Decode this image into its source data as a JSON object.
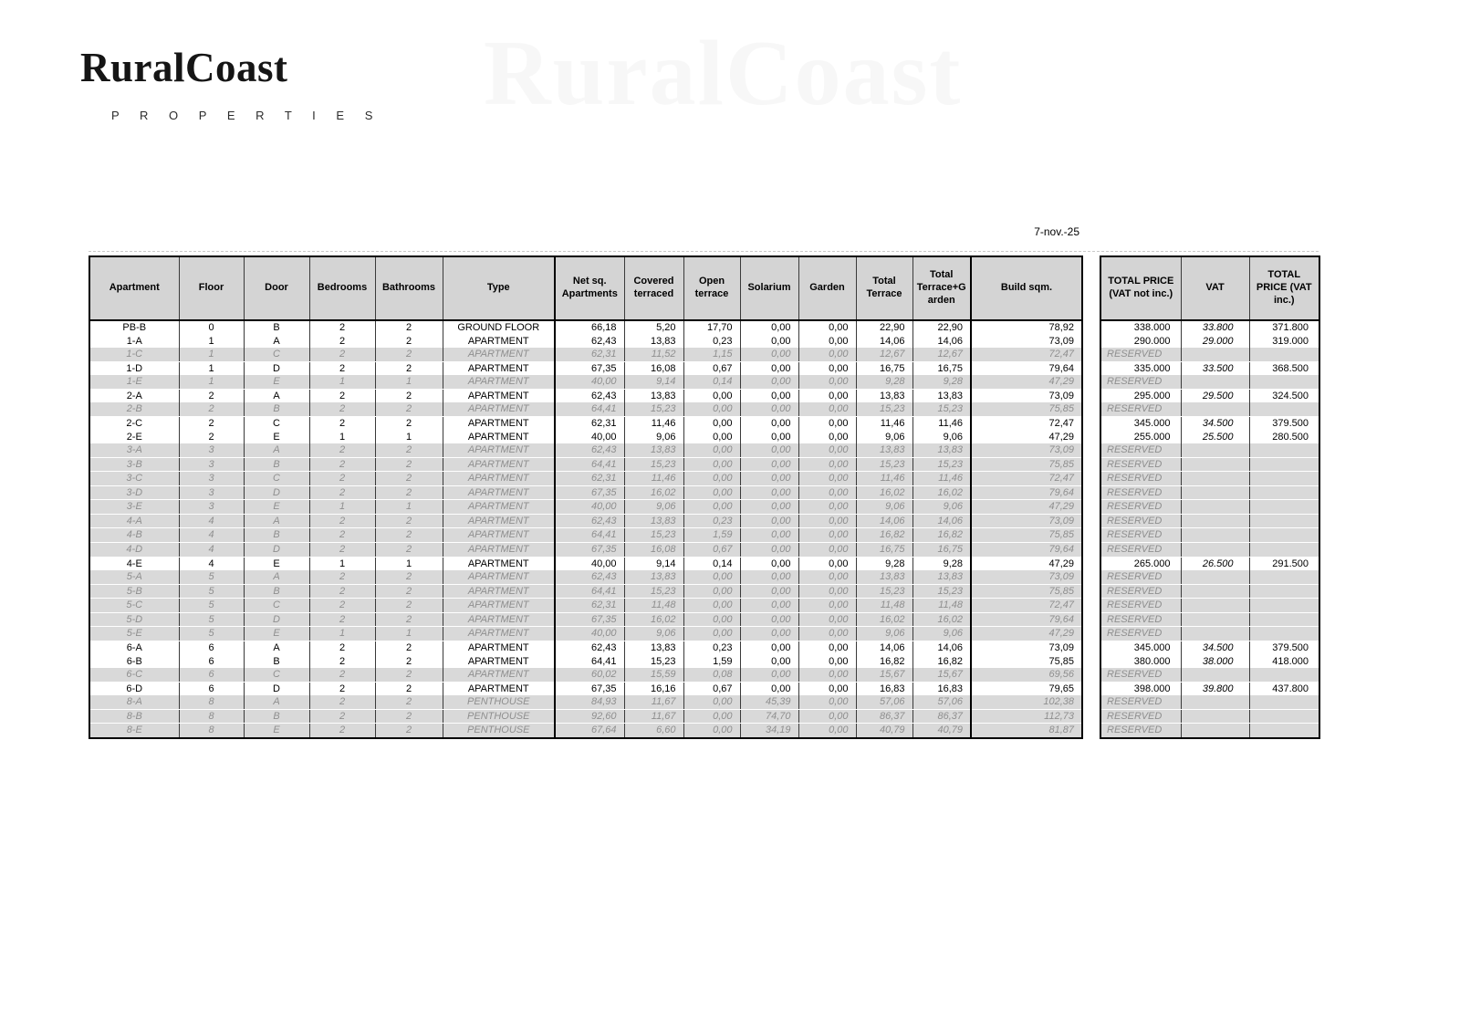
{
  "brand": {
    "name": "RuralCoast",
    "tagline": "P R O P E R T I E S",
    "watermark": "RuralCoast"
  },
  "date": "7-nov.-25",
  "colors": {
    "header_bg": "#d4d4d4",
    "reserved_bg": "#d9d9d9",
    "reserved_text": "#8f8f8f",
    "border": "#000000"
  },
  "table": {
    "headers": [
      "Apartment",
      "Floor",
      "Door",
      "Bedrooms",
      "Bathrooms",
      "Type",
      "Net sq. Apartments",
      "Covered terraced",
      "Open terrace",
      "Solarium",
      "Garden",
      "Total Terrace",
      "Total Terrace+Garden",
      "Build sqm."
    ],
    "rows": [
      {
        "cells": [
          "PB-B",
          "0",
          "B",
          "2",
          "2",
          "GROUND FLOOR",
          "66,18",
          "5,20",
          "17,70",
          "0,00",
          "0,00",
          "22,90",
          "22,90",
          "78,92"
        ],
        "reserved": false,
        "prices": [
          "338.000",
          "33.800",
          "371.800"
        ]
      },
      {
        "cells": [
          "1-A",
          "1",
          "A",
          "2",
          "2",
          "APARTMENT",
          "62,43",
          "13,83",
          "0,23",
          "0,00",
          "0,00",
          "14,06",
          "14,06",
          "73,09"
        ],
        "reserved": false,
        "prices": [
          "290.000",
          "29.000",
          "319.000"
        ]
      },
      {
        "cells": [
          "1-C",
          "1",
          "C",
          "2",
          "2",
          "APARTMENT",
          "62,31",
          "11,52",
          "1,15",
          "0,00",
          "0,00",
          "12,67",
          "12,67",
          "72,47"
        ],
        "reserved": true,
        "prices": null
      },
      {
        "cells": [
          "1-D",
          "1",
          "D",
          "2",
          "2",
          "APARTMENT",
          "67,35",
          "16,08",
          "0,67",
          "0,00",
          "0,00",
          "16,75",
          "16,75",
          "79,64"
        ],
        "reserved": false,
        "prices": [
          "335.000",
          "33.500",
          "368.500"
        ]
      },
      {
        "cells": [
          "1-E",
          "1",
          "E",
          "1",
          "1",
          "APARTMENT",
          "40,00",
          "9,14",
          "0,14",
          "0,00",
          "0,00",
          "9,28",
          "9,28",
          "47,29"
        ],
        "reserved": true,
        "prices": null
      },
      {
        "cells": [
          "2-A",
          "2",
          "A",
          "2",
          "2",
          "APARTMENT",
          "62,43",
          "13,83",
          "0,00",
          "0,00",
          "0,00",
          "13,83",
          "13,83",
          "73,09"
        ],
        "reserved": false,
        "prices": [
          "295.000",
          "29.500",
          "324.500"
        ]
      },
      {
        "cells": [
          "2-B",
          "2",
          "B",
          "2",
          "2",
          "APARTMENT",
          "64,41",
          "15,23",
          "0,00",
          "0,00",
          "0,00",
          "15,23",
          "15,23",
          "75,85"
        ],
        "reserved": true,
        "prices": null
      },
      {
        "cells": [
          "2-C",
          "2",
          "C",
          "2",
          "2",
          "APARTMENT",
          "62,31",
          "11,46",
          "0,00",
          "0,00",
          "0,00",
          "11,46",
          "11,46",
          "72,47"
        ],
        "reserved": false,
        "prices": [
          "345.000",
          "34.500",
          "379.500"
        ]
      },
      {
        "cells": [
          "2-E",
          "2",
          "E",
          "1",
          "1",
          "APARTMENT",
          "40,00",
          "9,06",
          "0,00",
          "0,00",
          "0,00",
          "9,06",
          "9,06",
          "47,29"
        ],
        "reserved": false,
        "prices": [
          "255.000",
          "25.500",
          "280.500"
        ]
      },
      {
        "cells": [
          "3-A",
          "3",
          "A",
          "2",
          "2",
          "APARTMENT",
          "62,43",
          "13,83",
          "0,00",
          "0,00",
          "0,00",
          "13,83",
          "13,83",
          "73,09"
        ],
        "reserved": true,
        "prices": null
      },
      {
        "cells": [
          "3-B",
          "3",
          "B",
          "2",
          "2",
          "APARTMENT",
          "64,41",
          "15,23",
          "0,00",
          "0,00",
          "0,00",
          "15,23",
          "15,23",
          "75,85"
        ],
        "reserved": true,
        "prices": null
      },
      {
        "cells": [
          "3-C",
          "3",
          "C",
          "2",
          "2",
          "APARTMENT",
          "62,31",
          "11,46",
          "0,00",
          "0,00",
          "0,00",
          "11,46",
          "11,46",
          "72,47"
        ],
        "reserved": true,
        "prices": null
      },
      {
        "cells": [
          "3-D",
          "3",
          "D",
          "2",
          "2",
          "APARTMENT",
          "67,35",
          "16,02",
          "0,00",
          "0,00",
          "0,00",
          "16,02",
          "16,02",
          "79,64"
        ],
        "reserved": true,
        "prices": null
      },
      {
        "cells": [
          "3-E",
          "3",
          "E",
          "1",
          "1",
          "APARTMENT",
          "40,00",
          "9,06",
          "0,00",
          "0,00",
          "0,00",
          "9,06",
          "9,06",
          "47,29"
        ],
        "reserved": true,
        "prices": null
      },
      {
        "cells": [
          "4-A",
          "4",
          "A",
          "2",
          "2",
          "APARTMENT",
          "62,43",
          "13,83",
          "0,23",
          "0,00",
          "0,00",
          "14,06",
          "14,06",
          "73,09"
        ],
        "reserved": true,
        "prices": null
      },
      {
        "cells": [
          "4-B",
          "4",
          "B",
          "2",
          "2",
          "APARTMENT",
          "64,41",
          "15,23",
          "1,59",
          "0,00",
          "0,00",
          "16,82",
          "16,82",
          "75,85"
        ],
        "reserved": true,
        "prices": null
      },
      {
        "cells": [
          "4-D",
          "4",
          "D",
          "2",
          "2",
          "APARTMENT",
          "67,35",
          "16,08",
          "0,67",
          "0,00",
          "0,00",
          "16,75",
          "16,75",
          "79,64"
        ],
        "reserved": true,
        "prices": null
      },
      {
        "cells": [
          "4-E",
          "4",
          "E",
          "1",
          "1",
          "APARTMENT",
          "40,00",
          "9,14",
          "0,14",
          "0,00",
          "0,00",
          "9,28",
          "9,28",
          "47,29"
        ],
        "reserved": false,
        "prices": [
          "265.000",
          "26.500",
          "291.500"
        ]
      },
      {
        "cells": [
          "5-A",
          "5",
          "A",
          "2",
          "2",
          "APARTMENT",
          "62,43",
          "13,83",
          "0,00",
          "0,00",
          "0,00",
          "13,83",
          "13,83",
          "73,09"
        ],
        "reserved": true,
        "prices": null
      },
      {
        "cells": [
          "5-B",
          "5",
          "B",
          "2",
          "2",
          "APARTMENT",
          "64,41",
          "15,23",
          "0,00",
          "0,00",
          "0,00",
          "15,23",
          "15,23",
          "75,85"
        ],
        "reserved": true,
        "prices": null
      },
      {
        "cells": [
          "5-C",
          "5",
          "C",
          "2",
          "2",
          "APARTMENT",
          "62,31",
          "11,48",
          "0,00",
          "0,00",
          "0,00",
          "11,48",
          "11,48",
          "72,47"
        ],
        "reserved": true,
        "prices": null
      },
      {
        "cells": [
          "5-D",
          "5",
          "D",
          "2",
          "2",
          "APARTMENT",
          "67,35",
          "16,02",
          "0,00",
          "0,00",
          "0,00",
          "16,02",
          "16,02",
          "79,64"
        ],
        "reserved": true,
        "prices": null
      },
      {
        "cells": [
          "5-E",
          "5",
          "E",
          "1",
          "1",
          "APARTMENT",
          "40,00",
          "9,06",
          "0,00",
          "0,00",
          "0,00",
          "9,06",
          "9,06",
          "47,29"
        ],
        "reserved": true,
        "prices": null
      },
      {
        "cells": [
          "6-A",
          "6",
          "A",
          "2",
          "2",
          "APARTMENT",
          "62,43",
          "13,83",
          "0,23",
          "0,00",
          "0,00",
          "14,06",
          "14,06",
          "73,09"
        ],
        "reserved": false,
        "prices": [
          "345.000",
          "34.500",
          "379.500"
        ]
      },
      {
        "cells": [
          "6-B",
          "6",
          "B",
          "2",
          "2",
          "APARTMENT",
          "64,41",
          "15,23",
          "1,59",
          "0,00",
          "0,00",
          "16,82",
          "16,82",
          "75,85"
        ],
        "reserved": false,
        "prices": [
          "380.000",
          "38.000",
          "418.000"
        ]
      },
      {
        "cells": [
          "6-C",
          "6",
          "C",
          "2",
          "2",
          "APARTMENT",
          "60,02",
          "15,59",
          "0,08",
          "0,00",
          "0,00",
          "15,67",
          "15,67",
          "69,56"
        ],
        "reserved": true,
        "prices": null
      },
      {
        "cells": [
          "6-D",
          "6",
          "D",
          "2",
          "2",
          "APARTMENT",
          "67,35",
          "16,16",
          "0,67",
          "0,00",
          "0,00",
          "16,83",
          "16,83",
          "79,65"
        ],
        "reserved": false,
        "prices": [
          "398.000",
          "39.800",
          "437.800"
        ]
      },
      {
        "cells": [
          "8-A",
          "8",
          "A",
          "2",
          "2",
          "PENTHOUSE",
          "84,93",
          "11,67",
          "0,00",
          "45,39",
          "0,00",
          "57,06",
          "57,06",
          "102,38"
        ],
        "reserved": true,
        "prices": null
      },
      {
        "cells": [
          "8-B",
          "8",
          "B",
          "2",
          "2",
          "PENTHOUSE",
          "92,60",
          "11,67",
          "0,00",
          "74,70",
          "0,00",
          "86,37",
          "86,37",
          "112,73"
        ],
        "reserved": true,
        "prices": null
      },
      {
        "cells": [
          "8-E",
          "8",
          "E",
          "2",
          "2",
          "PENTHOUSE",
          "67,64",
          "6,60",
          "0,00",
          "34,19",
          "0,00",
          "40,79",
          "40,79",
          "81,87"
        ],
        "reserved": true,
        "prices": null
      }
    ]
  },
  "price_table": {
    "headers": [
      "TOTAL PRICE (VAT not inc.)",
      "VAT",
      "TOTAL PRICE (VAT inc.)"
    ],
    "reserved_label": "RESERVED"
  }
}
